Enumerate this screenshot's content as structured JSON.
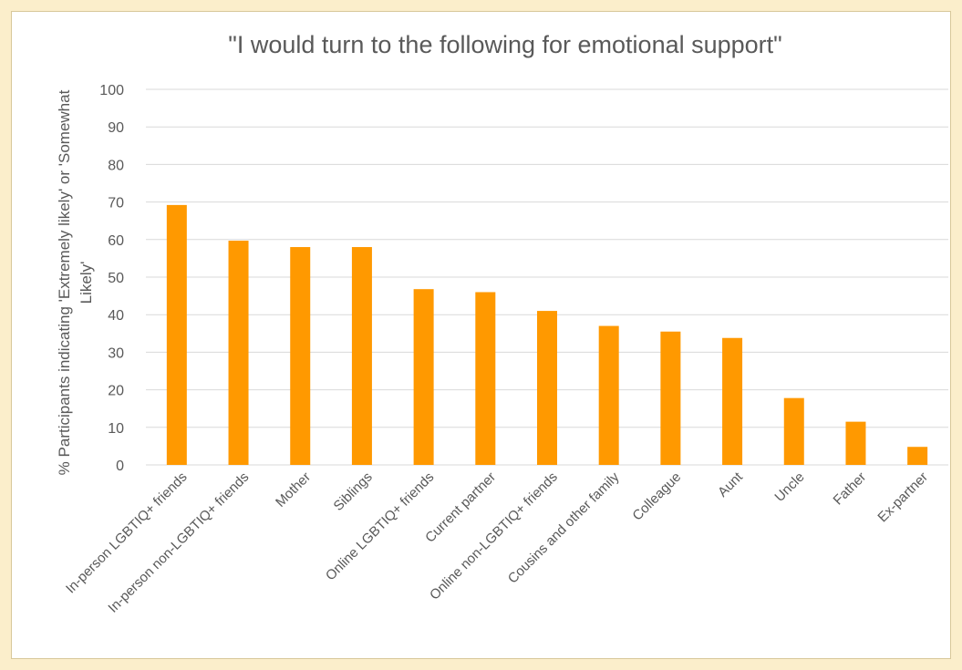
{
  "chart_data": {
    "type": "bar",
    "title": "\"I would turn to the following for emotional support\"",
    "xlabel": "",
    "ylabel_lines": [
      "% Participants indicating 'Extremely likely' or 'Somewhat",
      "Likely'"
    ],
    "ylim": [
      0,
      100
    ],
    "yticks": [
      0,
      10,
      20,
      30,
      40,
      50,
      60,
      70,
      80,
      90,
      100
    ],
    "grid": true,
    "bar_color": "#ff9900",
    "categories": [
      "In-person LGBTIQ+ friends",
      "In-person non-LGBTIQ+ friends",
      "Mother",
      "Siblings",
      "Online LGBTIQ+ friends",
      "Current partner",
      "Online non-LGBTIQ+ friends",
      "Cousins and other family",
      "Colleague",
      "Aunt",
      "Uncle",
      "Father",
      "Ex-partner"
    ],
    "values": [
      69.2,
      59.7,
      58.0,
      58.0,
      46.8,
      46.0,
      41.0,
      37.0,
      35.5,
      33.8,
      17.8,
      11.5,
      4.8
    ]
  }
}
